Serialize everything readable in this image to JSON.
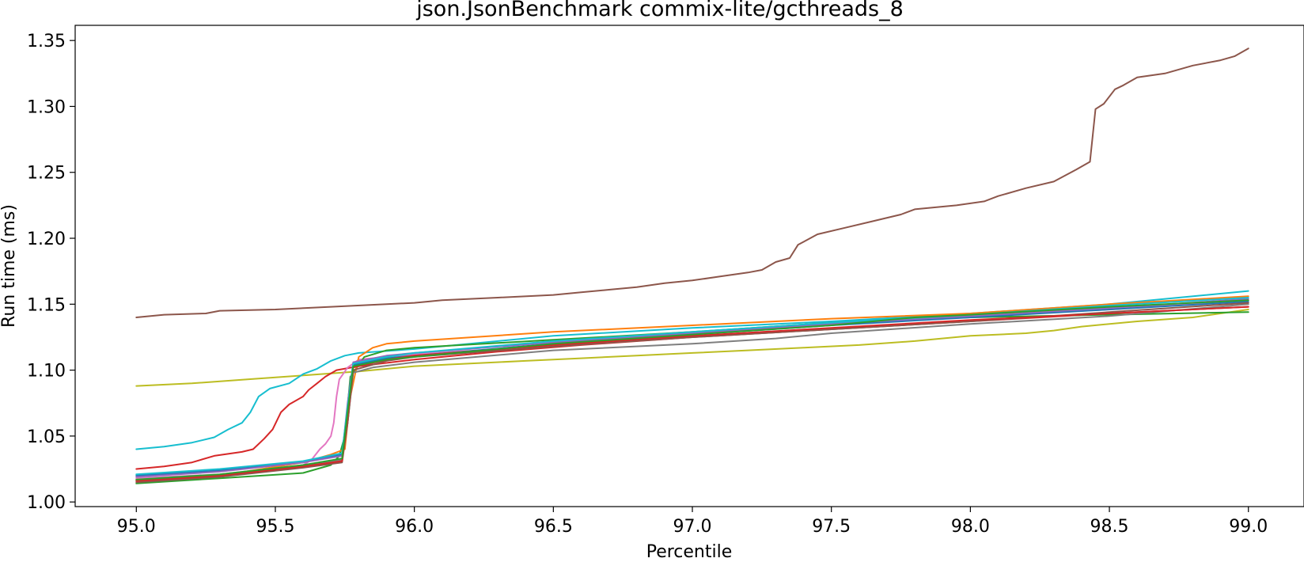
{
  "chart_data": {
    "type": "line",
    "title": "json.JsonBenchmark commix-lite/gcthreads_8",
    "xlabel": "Percentile",
    "ylabel": "Run time (ms)",
    "xlim": [
      94.78,
      99.2
    ],
    "ylim": [
      0.9965,
      1.3615
    ],
    "xticks": [
      95.0,
      95.5,
      96.0,
      96.5,
      97.0,
      97.5,
      98.0,
      98.5,
      99.0
    ],
    "xtick_labels": [
      "95.0",
      "95.5",
      "96.0",
      "96.5",
      "97.0",
      "97.5",
      "98.0",
      "98.5",
      "99.0"
    ],
    "yticks": [
      1.0,
      1.05,
      1.1,
      1.15,
      1.2,
      1.25,
      1.3,
      1.35
    ],
    "ytick_labels": [
      "1.00",
      "1.05",
      "1.10",
      "1.15",
      "1.20",
      "1.25",
      "1.30",
      "1.35"
    ],
    "grid": false,
    "legend": "none",
    "series": [
      {
        "color": "#8c564b",
        "points": [
          [
            95.0,
            1.14
          ],
          [
            95.1,
            1.142
          ],
          [
            95.25,
            1.143
          ],
          [
            95.3,
            1.145
          ],
          [
            95.5,
            1.146
          ],
          [
            95.7,
            1.148
          ],
          [
            95.9,
            1.15
          ],
          [
            96.0,
            1.151
          ],
          [
            96.1,
            1.153
          ],
          [
            96.3,
            1.155
          ],
          [
            96.5,
            1.157
          ],
          [
            96.6,
            1.159
          ],
          [
            96.7,
            1.161
          ],
          [
            96.8,
            1.163
          ],
          [
            96.9,
            1.166
          ],
          [
            97.0,
            1.168
          ],
          [
            97.1,
            1.171
          ],
          [
            97.2,
            1.174
          ],
          [
            97.25,
            1.176
          ],
          [
            97.3,
            1.182
          ],
          [
            97.35,
            1.185
          ],
          [
            97.38,
            1.195
          ],
          [
            97.45,
            1.203
          ],
          [
            97.55,
            1.208
          ],
          [
            97.65,
            1.213
          ],
          [
            97.75,
            1.218
          ],
          [
            97.8,
            1.222
          ],
          [
            97.95,
            1.225
          ],
          [
            98.05,
            1.228
          ],
          [
            98.1,
            1.232
          ],
          [
            98.2,
            1.238
          ],
          [
            98.3,
            1.243
          ],
          [
            98.38,
            1.252
          ],
          [
            98.43,
            1.258
          ],
          [
            98.45,
            1.298
          ],
          [
            98.48,
            1.302
          ],
          [
            98.52,
            1.313
          ],
          [
            98.55,
            1.316
          ],
          [
            98.6,
            1.322
          ],
          [
            98.7,
            1.325
          ],
          [
            98.8,
            1.331
          ],
          [
            98.9,
            1.335
          ],
          [
            98.95,
            1.338
          ],
          [
            99.0,
            1.344
          ]
        ]
      },
      {
        "color": "#bcbd22",
        "points": [
          [
            95.0,
            1.088
          ],
          [
            95.2,
            1.09
          ],
          [
            95.4,
            1.093
          ],
          [
            95.6,
            1.096
          ],
          [
            95.8,
            1.099
          ],
          [
            96.0,
            1.103
          ],
          [
            96.2,
            1.105
          ],
          [
            96.4,
            1.107
          ],
          [
            96.6,
            1.109
          ],
          [
            96.8,
            1.111
          ],
          [
            97.0,
            1.113
          ],
          [
            97.2,
            1.115
          ],
          [
            97.4,
            1.117
          ],
          [
            97.6,
            1.119
          ],
          [
            97.8,
            1.122
          ],
          [
            98.0,
            1.126
          ],
          [
            98.2,
            1.128
          ],
          [
            98.3,
            1.13
          ],
          [
            98.4,
            1.133
          ],
          [
            98.6,
            1.137
          ],
          [
            98.8,
            1.14
          ],
          [
            99.0,
            1.146
          ]
        ]
      },
      {
        "color": "#17becf",
        "points": [
          [
            95.0,
            1.04
          ],
          [
            95.1,
            1.042
          ],
          [
            95.2,
            1.045
          ],
          [
            95.28,
            1.049
          ],
          [
            95.33,
            1.055
          ],
          [
            95.38,
            1.06
          ],
          [
            95.41,
            1.068
          ],
          [
            95.44,
            1.08
          ],
          [
            95.48,
            1.086
          ],
          [
            95.55,
            1.09
          ],
          [
            95.6,
            1.097
          ],
          [
            95.65,
            1.101
          ],
          [
            95.7,
            1.107
          ],
          [
            95.75,
            1.111
          ],
          [
            95.8,
            1.113
          ],
          [
            96.0,
            1.116
          ],
          [
            96.2,
            1.12
          ],
          [
            96.5,
            1.126
          ],
          [
            97.0,
            1.132
          ],
          [
            97.5,
            1.137
          ],
          [
            98.0,
            1.143
          ],
          [
            98.5,
            1.15
          ],
          [
            99.0,
            1.16
          ]
        ]
      },
      {
        "color": "#d62728",
        "points": [
          [
            95.0,
            1.025
          ],
          [
            95.1,
            1.027
          ],
          [
            95.2,
            1.03
          ],
          [
            95.28,
            1.035
          ],
          [
            95.38,
            1.038
          ],
          [
            95.42,
            1.04
          ],
          [
            95.46,
            1.048
          ],
          [
            95.49,
            1.055
          ],
          [
            95.52,
            1.068
          ],
          [
            95.55,
            1.074
          ],
          [
            95.6,
            1.08
          ],
          [
            95.62,
            1.085
          ],
          [
            95.65,
            1.09
          ],
          [
            95.68,
            1.095
          ],
          [
            95.72,
            1.1
          ],
          [
            95.8,
            1.103
          ],
          [
            96.0,
            1.108
          ],
          [
            96.3,
            1.114
          ],
          [
            96.6,
            1.119
          ],
          [
            97.0,
            1.125
          ],
          [
            97.5,
            1.131
          ],
          [
            98.0,
            1.137
          ],
          [
            98.5,
            1.143
          ],
          [
            99.0,
            1.148
          ]
        ]
      },
      {
        "color": "#e377c2",
        "points": [
          [
            95.0,
            1.018
          ],
          [
            95.3,
            1.021
          ],
          [
            95.6,
            1.028
          ],
          [
            95.63,
            1.032
          ],
          [
            95.66,
            1.04
          ],
          [
            95.68,
            1.044
          ],
          [
            95.7,
            1.05
          ],
          [
            95.71,
            1.06
          ],
          [
            95.72,
            1.08
          ],
          [
            95.73,
            1.093
          ],
          [
            95.76,
            1.102
          ],
          [
            95.8,
            1.108
          ],
          [
            96.0,
            1.112
          ],
          [
            96.5,
            1.122
          ],
          [
            97.0,
            1.128
          ],
          [
            97.5,
            1.135
          ],
          [
            98.0,
            1.141
          ],
          [
            98.5,
            1.146
          ],
          [
            99.0,
            1.153
          ]
        ]
      },
      {
        "color": "#2ca02c",
        "points": [
          [
            95.0,
            1.014
          ],
          [
            95.3,
            1.018
          ],
          [
            95.6,
            1.022
          ],
          [
            95.7,
            1.028
          ],
          [
            95.73,
            1.035
          ],
          [
            95.75,
            1.05
          ],
          [
            95.77,
            1.095
          ],
          [
            95.82,
            1.11
          ],
          [
            95.9,
            1.115
          ],
          [
            96.0,
            1.117
          ],
          [
            96.5,
            1.123
          ],
          [
            97.0,
            1.129
          ],
          [
            97.5,
            1.136
          ],
          [
            98.0,
            1.14
          ],
          [
            98.5,
            1.142
          ],
          [
            99.0,
            1.144
          ]
        ]
      },
      {
        "color": "#ff7f0e",
        "points": [
          [
            95.0,
            1.017
          ],
          [
            95.3,
            1.02
          ],
          [
            95.6,
            1.03
          ],
          [
            95.7,
            1.036
          ],
          [
            95.75,
            1.04
          ],
          [
            95.77,
            1.08
          ],
          [
            95.8,
            1.11
          ],
          [
            95.85,
            1.117
          ],
          [
            95.9,
            1.12
          ],
          [
            96.0,
            1.122
          ],
          [
            96.5,
            1.129
          ],
          [
            97.0,
            1.134
          ],
          [
            97.5,
            1.139
          ],
          [
            98.0,
            1.143
          ],
          [
            98.5,
            1.15
          ],
          [
            99.0,
            1.156
          ]
        ]
      },
      {
        "color": "#7f7f7f",
        "points": [
          [
            95.0,
            1.016
          ],
          [
            95.3,
            1.02
          ],
          [
            95.6,
            1.027
          ],
          [
            95.74,
            1.032
          ],
          [
            95.76,
            1.06
          ],
          [
            95.78,
            1.098
          ],
          [
            95.85,
            1.102
          ],
          [
            96.0,
            1.106
          ],
          [
            96.5,
            1.115
          ],
          [
            97.0,
            1.12
          ],
          [
            97.3,
            1.124
          ],
          [
            97.5,
            1.128
          ],
          [
            98.0,
            1.135
          ],
          [
            98.5,
            1.141
          ],
          [
            99.0,
            1.15
          ]
        ]
      },
      {
        "color": "#1f77b4",
        "points": [
          [
            95.0,
            1.02
          ],
          [
            95.3,
            1.024
          ],
          [
            95.6,
            1.03
          ],
          [
            95.74,
            1.036
          ],
          [
            95.76,
            1.07
          ],
          [
            95.78,
            1.104
          ],
          [
            95.9,
            1.109
          ],
          [
            96.0,
            1.111
          ],
          [
            96.5,
            1.12
          ],
          [
            97.0,
            1.127
          ],
          [
            97.5,
            1.134
          ],
          [
            98.0,
            1.14
          ],
          [
            98.5,
            1.146
          ],
          [
            99.0,
            1.152
          ]
        ]
      },
      {
        "color": "#9467bd",
        "points": [
          [
            95.0,
            1.019
          ],
          [
            95.3,
            1.023
          ],
          [
            95.6,
            1.03
          ],
          [
            95.74,
            1.035
          ],
          [
            95.76,
            1.075
          ],
          [
            95.78,
            1.106
          ],
          [
            95.9,
            1.111
          ],
          [
            96.0,
            1.113
          ],
          [
            96.5,
            1.121
          ],
          [
            97.0,
            1.128
          ],
          [
            97.5,
            1.135
          ],
          [
            98.0,
            1.141
          ],
          [
            98.5,
            1.147
          ],
          [
            99.0,
            1.154
          ]
        ]
      },
      {
        "color": "#8c564b",
        "points": [
          [
            95.0,
            1.015
          ],
          [
            95.3,
            1.019
          ],
          [
            95.6,
            1.026
          ],
          [
            95.74,
            1.03
          ],
          [
            95.76,
            1.06
          ],
          [
            95.78,
            1.1
          ],
          [
            95.9,
            1.107
          ],
          [
            96.0,
            1.11
          ],
          [
            96.5,
            1.118
          ],
          [
            97.0,
            1.125
          ],
          [
            97.5,
            1.131
          ],
          [
            98.0,
            1.137
          ],
          [
            98.5,
            1.144
          ],
          [
            99.0,
            1.151
          ]
        ]
      },
      {
        "color": "#d62728",
        "points": [
          [
            95.0,
            1.016
          ],
          [
            95.3,
            1.02
          ],
          [
            95.6,
            1.027
          ],
          [
            95.74,
            1.031
          ],
          [
            95.76,
            1.065
          ],
          [
            95.78,
            1.102
          ],
          [
            95.9,
            1.108
          ],
          [
            96.0,
            1.111
          ],
          [
            96.5,
            1.119
          ],
          [
            97.0,
            1.126
          ],
          [
            97.5,
            1.132
          ],
          [
            98.0,
            1.138
          ],
          [
            98.5,
            1.143
          ],
          [
            99.0,
            1.148
          ]
        ]
      },
      {
        "color": "#17becf",
        "points": [
          [
            95.0,
            1.021
          ],
          [
            95.3,
            1.025
          ],
          [
            95.6,
            1.031
          ],
          [
            95.74,
            1.037
          ],
          [
            95.76,
            1.072
          ],
          [
            95.78,
            1.105
          ],
          [
            95.9,
            1.11
          ],
          [
            96.0,
            1.113
          ],
          [
            96.5,
            1.122
          ],
          [
            97.0,
            1.129
          ],
          [
            97.5,
            1.136
          ],
          [
            98.0,
            1.142
          ],
          [
            98.5,
            1.149
          ],
          [
            99.0,
            1.155
          ]
        ]
      },
      {
        "color": "#2ca02c",
        "points": [
          [
            95.0,
            1.017
          ],
          [
            95.3,
            1.021
          ],
          [
            95.6,
            1.028
          ],
          [
            95.74,
            1.033
          ],
          [
            95.76,
            1.068
          ],
          [
            95.78,
            1.103
          ],
          [
            95.9,
            1.108
          ],
          [
            96.0,
            1.11
          ],
          [
            96.5,
            1.12
          ],
          [
            97.0,
            1.127
          ],
          [
            97.5,
            1.134
          ],
          [
            97.8,
            1.14
          ],
          [
            98.0,
            1.142
          ],
          [
            98.5,
            1.148
          ],
          [
            99.0,
            1.153
          ]
        ]
      }
    ]
  }
}
